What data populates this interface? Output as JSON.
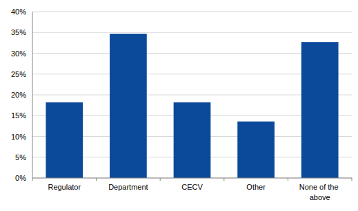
{
  "chart_data": {
    "type": "bar",
    "categories": [
      "Regulator",
      "Department",
      "CECV",
      "Other",
      "None of the above"
    ],
    "values": [
      18.2,
      34.7,
      18.2,
      13.6,
      32.7
    ],
    "color": "#0b4a9a",
    "ylim": [
      0,
      40
    ],
    "yticks": [
      {
        "value": 0,
        "label": "0%"
      },
      {
        "value": 5,
        "label": "5%"
      },
      {
        "value": 10,
        "label": "10%"
      },
      {
        "value": 15,
        "label": "15%"
      },
      {
        "value": 20,
        "label": "20%"
      },
      {
        "value": 25,
        "label": "25%"
      },
      {
        "value": 30,
        "label": "30%"
      },
      {
        "value": 35,
        "label": "35%"
      },
      {
        "value": 40,
        "label": "40%"
      }
    ],
    "grid": true
  }
}
